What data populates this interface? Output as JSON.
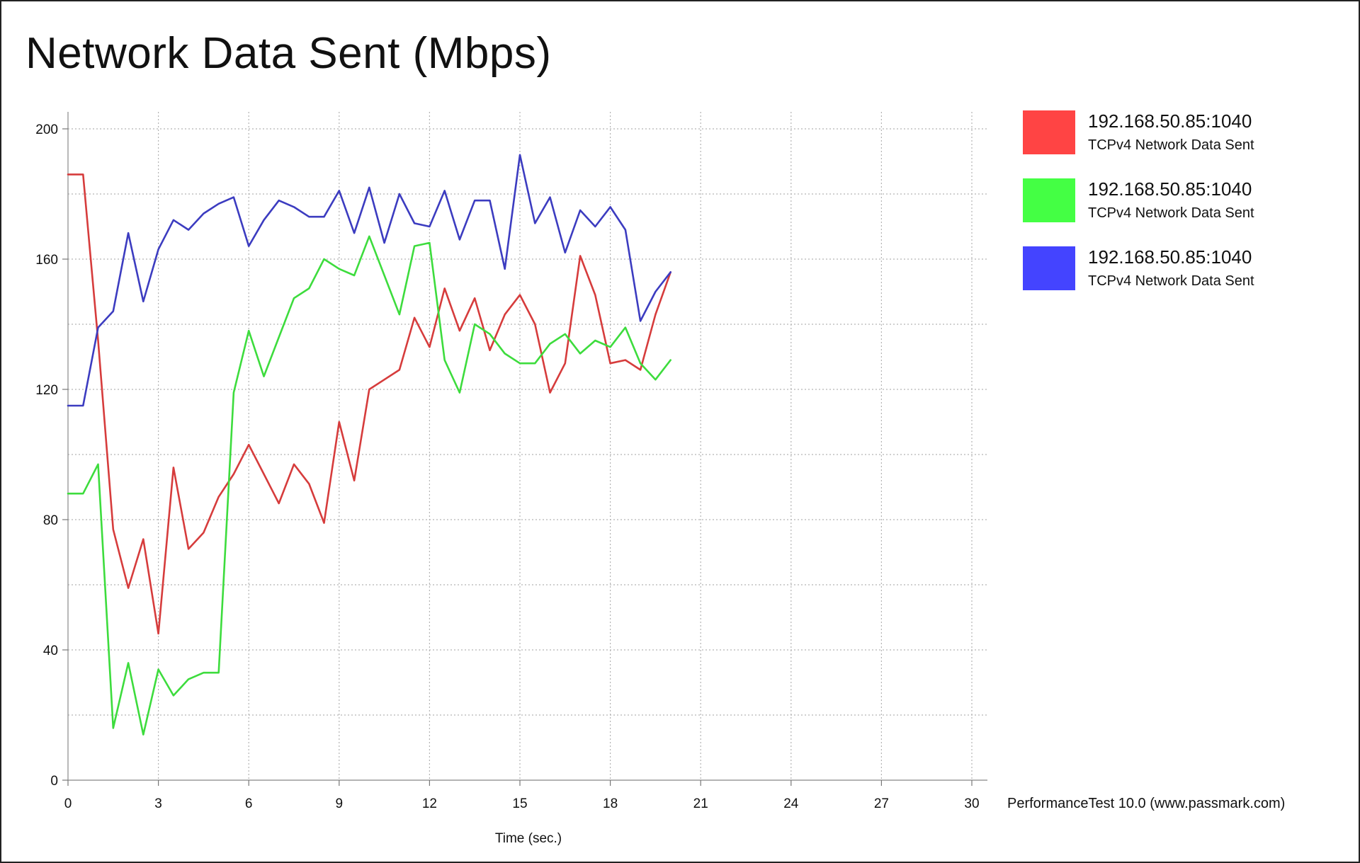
{
  "chart_data": {
    "type": "line",
    "title": "Network Data Sent (Mbps)",
    "xlabel": "Time (sec.)",
    "ylabel": "",
    "xlim": [
      0,
      30
    ],
    "ylim": [
      0,
      200
    ],
    "xticks": [
      0,
      3,
      6,
      9,
      12,
      15,
      18,
      21,
      24,
      27,
      30
    ],
    "yticks": [
      0,
      40,
      80,
      120,
      160,
      200
    ],
    "grid": true,
    "legend_position": "right",
    "footer": "PerformanceTest 10.0 (www.passmark.com)",
    "series": [
      {
        "name": "192.168.50.85:1040",
        "description": "TCPv4 Network Data Sent",
        "color": "#d63c3c",
        "swatch": "#ff4444",
        "x": [
          0,
          0.5,
          1,
          1.5,
          2,
          2.5,
          3,
          3.5,
          4,
          4.5,
          5,
          5.5,
          6,
          6.5,
          7,
          7.5,
          8,
          8.5,
          9,
          9.5,
          10,
          10.5,
          11,
          11.5,
          12,
          12.5,
          13,
          13.5,
          14,
          14.5,
          15,
          15.5,
          16,
          16.5,
          17,
          17.5,
          18,
          18.5,
          19,
          19.5,
          20
        ],
        "y": [
          186,
          186,
          135,
          77,
          59,
          74,
          45,
          96,
          71,
          76,
          87,
          94,
          103,
          94,
          85,
          97,
          91,
          79,
          110,
          92,
          120,
          123,
          126,
          142,
          133,
          151,
          138,
          148,
          132,
          143,
          149,
          140,
          119,
          128,
          161,
          149,
          128,
          129,
          126,
          143,
          156
        ]
      },
      {
        "name": "192.168.50.85:1040",
        "description": "TCPv4 Network Data Sent",
        "color": "#3ddc3d",
        "swatch": "#44ff44",
        "x": [
          0,
          0.5,
          1,
          1.5,
          2,
          2.5,
          3,
          3.5,
          4,
          4.5,
          5,
          5.5,
          6,
          6.5,
          7,
          7.5,
          8,
          8.5,
          9,
          9.5,
          10,
          10.5,
          11,
          11.5,
          12,
          12.5,
          13,
          13.5,
          14,
          14.5,
          15,
          15.5,
          16,
          16.5,
          17,
          17.5,
          18,
          18.5,
          19,
          19.5,
          20
        ],
        "y": [
          88,
          88,
          97,
          16,
          36,
          14,
          34,
          26,
          31,
          33,
          33,
          119,
          138,
          124,
          136,
          148,
          151,
          160,
          157,
          155,
          167,
          155,
          143,
          164,
          165,
          129,
          119,
          140,
          137,
          131,
          128,
          128,
          134,
          137,
          131,
          135,
          133,
          139,
          128,
          123,
          129
        ]
      },
      {
        "name": "192.168.50.85:1040",
        "description": "TCPv4 Network Data Sent",
        "color": "#3c3cc0",
        "swatch": "#4444ff",
        "x": [
          0,
          0.5,
          1,
          1.5,
          2,
          2.5,
          3,
          3.5,
          4,
          4.5,
          5,
          5.5,
          6,
          6.5,
          7,
          7.5,
          8,
          8.5,
          9,
          9.5,
          10,
          10.5,
          11,
          11.5,
          12,
          12.5,
          13,
          13.5,
          14,
          14.5,
          15,
          15.5,
          16,
          16.5,
          17,
          17.5,
          18,
          18.5,
          19,
          19.5,
          20
        ],
        "y": [
          115,
          115,
          139,
          144,
          168,
          147,
          163,
          172,
          169,
          174,
          177,
          179,
          164,
          172,
          178,
          176,
          173,
          173,
          181,
          168,
          182,
          165,
          180,
          171,
          170,
          181,
          166,
          178,
          178,
          157,
          192,
          171,
          179,
          162,
          175,
          170,
          176,
          169,
          141,
          150,
          156
        ]
      }
    ]
  }
}
